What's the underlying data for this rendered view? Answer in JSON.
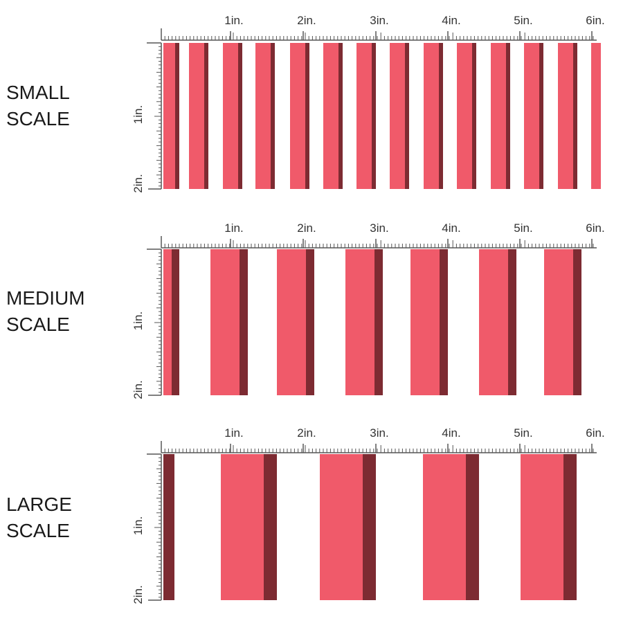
{
  "colors": {
    "stripe": "#f05a6a",
    "shadow": "#7d2b32",
    "ruler": "#555555"
  },
  "ruler": {
    "h_labels": [
      "1in.",
      "2in.",
      "3in.",
      "4in.",
      "5in.",
      "6in."
    ],
    "v_labels": [
      "1in.",
      "2in."
    ]
  },
  "panels": [
    {
      "id": "small",
      "label": "SMALL\nSCALE"
    },
    {
      "id": "medium",
      "label": "MEDIUM\nSCALE"
    },
    {
      "id": "large",
      "label": "LARGE\nSCALE"
    }
  ]
}
